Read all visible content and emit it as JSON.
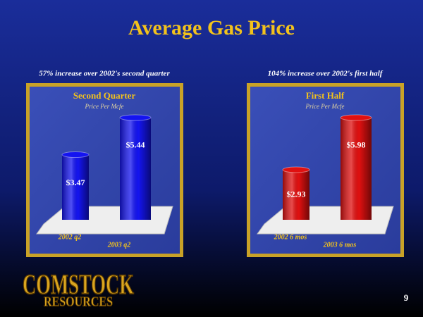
{
  "title": "Average Gas Price",
  "chart_data": [
    {
      "type": "bar",
      "caption": "57% increase over 2002's second quarter",
      "title": "Second Quarter",
      "subtitle": "Price Per Mcfe",
      "categories": [
        "2002 q2",
        "2003 q2"
      ],
      "values": [
        3.47,
        5.44
      ],
      "value_labels": [
        "$3.47",
        "$5.44"
      ],
      "color": "#1414f0"
    },
    {
      "type": "bar",
      "caption": "104% increase over 2002's first half",
      "title": "First Half",
      "subtitle": "Price Per Mcfe",
      "categories": [
        "2002 6 mos",
        "2003 6 mos"
      ],
      "values": [
        2.93,
        5.98
      ],
      "value_labels": [
        "$2.93",
        "$5.98"
      ],
      "color": "#e01010"
    }
  ],
  "logo": {
    "line1": "COMSTOCK",
    "line2": "RESOURCES"
  },
  "page_number": "9"
}
